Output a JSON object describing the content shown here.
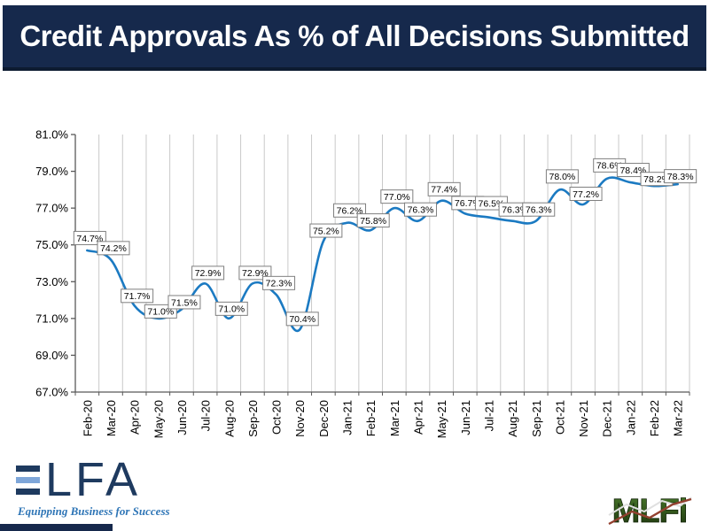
{
  "header": {
    "title": "Credit Approvals As % of All Decisions Submitted",
    "bg_color": "#16294C",
    "text_color": "#FFFFFF"
  },
  "chart_data": {
    "type": "line",
    "title": "Credit Approvals As % of All Decisions Submitted",
    "categories": [
      "Feb-20",
      "Mar-20",
      "Apr-20",
      "May-20",
      "Jun-20",
      "Jul-20",
      "Aug-20",
      "Sep-20",
      "Oct-20",
      "Nov-20",
      "Dec-20",
      "Jan-21",
      "Feb-21",
      "Mar-21",
      "Apr-21",
      "May-21",
      "Jun-21",
      "Jul-21",
      "Aug-21",
      "Sep-21",
      "Oct-21",
      "Nov-21",
      "Dec-21",
      "Jan-22",
      "Feb-22",
      "Mar-22"
    ],
    "series": [
      {
        "name": "Credit approvals as % of all decisions submitted",
        "values": [
          74.7,
          74.2,
          71.7,
          71.0,
          71.5,
          72.9,
          71.0,
          72.9,
          72.3,
          70.4,
          75.2,
          76.2,
          75.8,
          77.0,
          76.3,
          77.4,
          76.7,
          76.5,
          76.3,
          76.3,
          78.0,
          77.2,
          78.6,
          78.4,
          78.2,
          78.3
        ]
      }
    ],
    "point_labels": [
      "74.7%",
      "74.2%",
      "71.7%",
      "71.0%",
      "71.5%",
      "72.9%",
      "71.0%",
      "72.9%",
      "72.3%",
      "70.4%",
      "75.2%",
      "76.2%",
      "75.8%",
      "77.0%",
      "76.3%",
      "77.4%",
      "76.7%",
      "76.5%",
      "76.3%",
      "76.3%",
      "78.0%",
      "77.2%",
      "78.6%",
      "78.4%",
      "78.2%",
      "78.3%"
    ],
    "ylim": [
      67.0,
      81.0
    ],
    "ytick_step": 2.0,
    "ytick_labels": [
      "67.0%",
      "69.0%",
      "71.0%",
      "73.0%",
      "75.0%",
      "77.0%",
      "79.0%",
      "81.0%"
    ],
    "gridlines": "vertical",
    "smooth": true,
    "legend": "none",
    "line_color": "#1B7AC2",
    "grid_color": "#C9C9C9",
    "axis_color": "#595959",
    "label_box_border": "#7F7F7F",
    "label_text_color": "#000000"
  },
  "footer": {
    "elfa": {
      "letters_rest": "LFA",
      "tagline": "Equipping Business for Success",
      "navy": "#1E3A5F",
      "light_blue": "#7EA6D9",
      "tagline_color": "#2E75B6"
    },
    "mlfi": {
      "text": "MLFi",
      "green_dark": "#1C330D",
      "green_light": "#4A7A2B"
    }
  }
}
